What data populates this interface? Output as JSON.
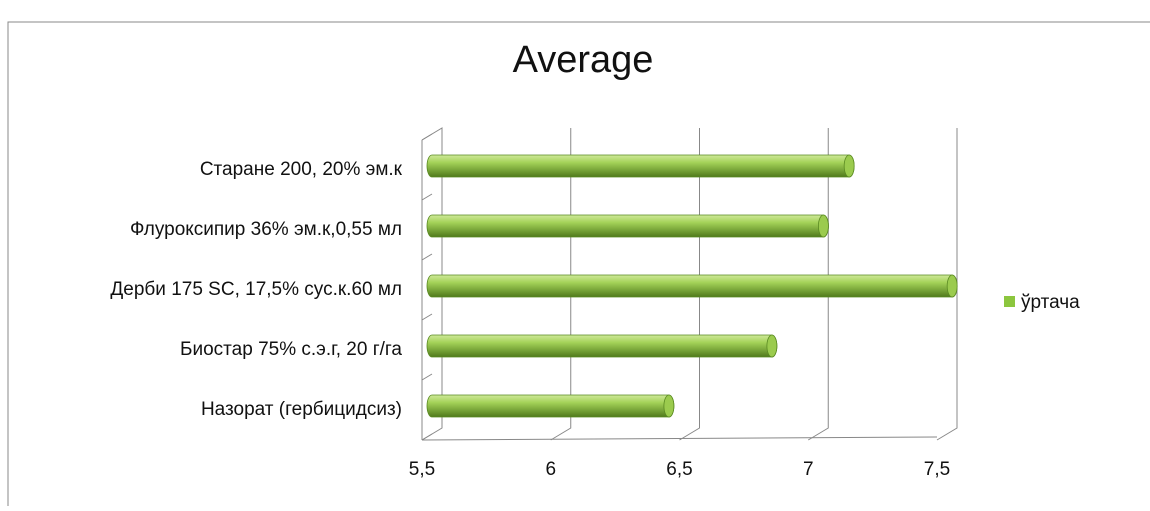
{
  "chart_data": {
    "type": "bar",
    "orientation": "horizontal",
    "title": "Average",
    "categories": [
      "Старане 200, 20% эм.к",
      "Флуроксипир 36% эм.к,0,55 мл",
      "Дерби 175 SC, 17,5% сус.к.60 мл",
      "Биостар 75% с.э.г, 20 г/га",
      "Назорат (гербицидсиз)"
    ],
    "series": [
      {
        "name": "ўртача",
        "color": "#8cc63e",
        "values": [
          7.12,
          7.02,
          7.52,
          6.82,
          6.42
        ]
      }
    ],
    "xlim": [
      5.5,
      7.5
    ],
    "xticks": [
      {
        "value": 5.5,
        "label": "5,5"
      },
      6,
      {
        "value": 6.5,
        "label": "6,5"
      },
      7,
      {
        "value": 7.5,
        "label": "7,5"
      }
    ],
    "grid": true,
    "legend": "right"
  }
}
